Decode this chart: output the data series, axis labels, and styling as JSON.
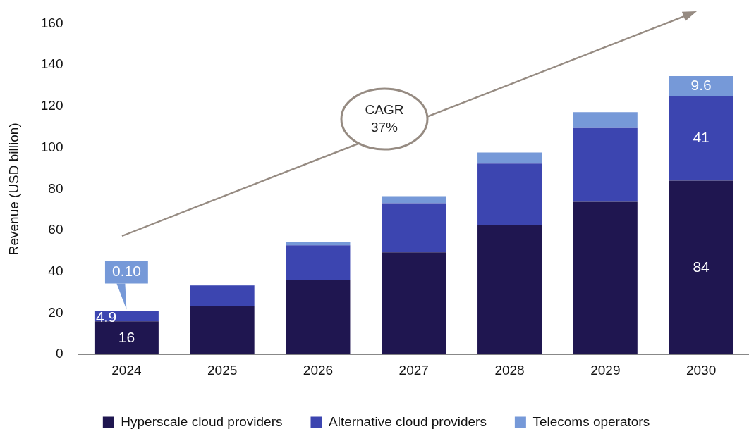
{
  "chart_data": {
    "type": "bar",
    "stacked": true,
    "ylabel": "Revenue (USD billion)",
    "categories": [
      "2024",
      "2025",
      "2026",
      "2027",
      "2028",
      "2029",
      "2030"
    ],
    "series": [
      {
        "name": "Hyperscale cloud providers",
        "color": "#1f1650",
        "values": [
          16,
          23.6,
          35.9,
          49.4,
          62.4,
          73.8,
          84
        ],
        "value_labels": [
          "16",
          null,
          null,
          null,
          null,
          null,
          "84"
        ]
      },
      {
        "name": "Alternative cloud providers",
        "color": "#3c45b0",
        "values": [
          4.9,
          9.8,
          16.9,
          23.7,
          29.9,
          35.7,
          41
        ],
        "value_labels": [
          "4.9",
          null,
          null,
          null,
          null,
          null,
          "41"
        ]
      },
      {
        "name": "Telecoms operators",
        "color": "#7699d8",
        "values": [
          0.1,
          0.3,
          1.5,
          3.4,
          5.3,
          7.6,
          9.6
        ],
        "value_labels": [
          "0.10",
          null,
          null,
          null,
          null,
          null,
          "9.6"
        ]
      }
    ],
    "ylim": [
      0,
      160
    ],
    "yticks": [
      0,
      20,
      40,
      60,
      80,
      100,
      120,
      140,
      160
    ],
    "grid": false,
    "legend": "bottom",
    "annotations": [
      "CAGR\n37%"
    ]
  }
}
